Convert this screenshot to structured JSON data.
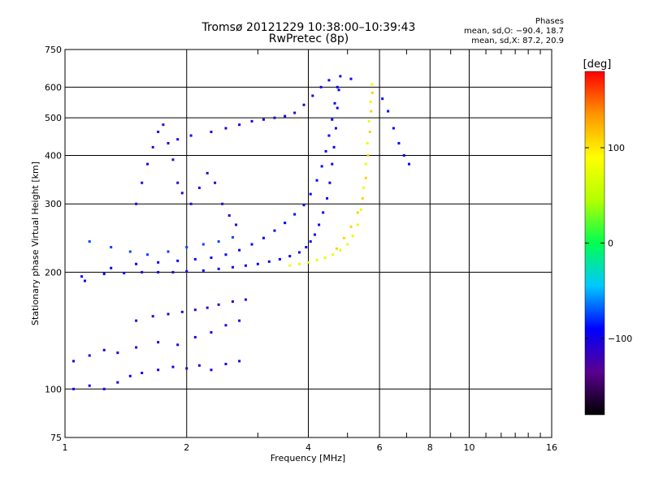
{
  "header": {
    "title_line1": "Tromsø 20121229 10:38:00–10:39:43",
    "title_line2": "RwPretec (8p)",
    "phases_heading": "Phases",
    "phases_o": "mean, sd,O: −90.4, 18.7",
    "phases_x": "mean, sd,X: 87.2, 20.9"
  },
  "chart_data": {
    "type": "scatter",
    "title": "Tromsø 20121229 10:38:00–10:39:43",
    "subtitle": "RwPretec (8p)",
    "xlabel": "Frequency [MHz]",
    "ylabel": "Stationary phase Virtual Height [km]",
    "x_scale": "log",
    "y_scale": "log",
    "xlim": [
      1,
      16
    ],
    "ylim": [
      75,
      750
    ],
    "x_ticks": [
      1,
      2,
      4,
      6,
      8,
      10,
      16
    ],
    "x_tick_labels": [
      "1",
      "2",
      "4",
      "6",
      "8",
      "10",
      "16"
    ],
    "x_minor_ticks": [
      3,
      5,
      7,
      9,
      11,
      12,
      13,
      14,
      15
    ],
    "y_ticks": [
      75,
      100,
      200,
      300,
      400,
      500,
      600,
      750
    ],
    "y_tick_labels": [
      "75",
      "100",
      "200",
      "300",
      "400",
      "500",
      "600",
      "750"
    ],
    "grid": true,
    "colorbar": {
      "label": "[deg]",
      "range": [
        -180,
        180
      ],
      "ticks": [
        100,
        0,
        -100
      ],
      "tick_labels": [
        "100",
        "0",
        "−100"
      ],
      "colormap": [
        "#000000",
        "#5a0090",
        "#0000ff",
        "#00c8ff",
        "#00ff50",
        "#b4ff00",
        "#ffff00",
        "#ff9600",
        "#ff0000"
      ]
    },
    "series": [
      {
        "name": "",
        "traces": [
          {
            "color_deg": -95,
            "points": [
              [
                1.12,
                190
              ],
              [
                1.25,
                198
              ],
              [
                1.4,
                199
              ],
              [
                1.55,
                200
              ],
              [
                1.7,
                200
              ],
              [
                1.85,
                200
              ],
              [
                2.0,
                201
              ],
              [
                2.2,
                202
              ],
              [
                2.4,
                204
              ],
              [
                2.6,
                206
              ],
              [
                2.8,
                208
              ],
              [
                3.0,
                210
              ],
              [
                3.2,
                213
              ],
              [
                3.4,
                216
              ],
              [
                3.6,
                220
              ],
              [
                3.8,
                225
              ],
              [
                3.95,
                232
              ],
              [
                4.05,
                240
              ],
              [
                4.15,
                250
              ],
              [
                4.25,
                265
              ],
              [
                4.35,
                285
              ],
              [
                4.45,
                310
              ],
              [
                4.52,
                340
              ],
              [
                4.58,
                380
              ],
              [
                4.63,
                420
              ],
              [
                4.68,
                470
              ],
              [
                4.72,
                530
              ],
              [
                4.76,
                590
              ]
            ]
          },
          {
            "color_deg": -90,
            "points": [
              [
                1.1,
                195
              ],
              [
                1.3,
                205
              ],
              [
                1.5,
                210
              ],
              [
                1.7,
                212
              ],
              [
                1.9,
                214
              ],
              [
                2.1,
                216
              ],
              [
                2.3,
                218
              ],
              [
                2.5,
                222
              ],
              [
                2.7,
                228
              ],
              [
                2.9,
                236
              ],
              [
                3.1,
                245
              ],
              [
                3.3,
                256
              ],
              [
                3.5,
                268
              ],
              [
                3.7,
                282
              ],
              [
                3.9,
                298
              ],
              [
                4.05,
                318
              ],
              [
                4.2,
                345
              ],
              [
                4.32,
                375
              ],
              [
                4.42,
                410
              ],
              [
                4.5,
                450
              ],
              [
                4.58,
                495
              ],
              [
                4.65,
                545
              ],
              [
                4.72,
                600
              ]
            ]
          },
          {
            "color_deg": -75,
            "points": [
              [
                1.15,
                240
              ],
              [
                1.3,
                232
              ],
              [
                1.45,
                226
              ],
              [
                1.6,
                222
              ],
              [
                1.8,
                226
              ],
              [
                2.0,
                232
              ],
              [
                2.2,
                236
              ],
              [
                2.4,
                240
              ],
              [
                2.6,
                246
              ]
            ]
          },
          {
            "color_deg": -110,
            "points": [
              [
                1.5,
                300
              ],
              [
                1.55,
                340
              ],
              [
                1.6,
                380
              ],
              [
                1.65,
                420
              ],
              [
                1.7,
                460
              ],
              [
                1.75,
                480
              ],
              [
                1.8,
                430
              ],
              [
                1.85,
                390
              ],
              [
                1.9,
                340
              ],
              [
                1.95,
                320
              ],
              [
                2.05,
                300
              ],
              [
                2.15,
                330
              ],
              [
                2.25,
                360
              ],
              [
                2.35,
                340
              ],
              [
                2.45,
                300
              ],
              [
                2.55,
                280
              ],
              [
                2.65,
                265
              ]
            ]
          },
          {
            "color_deg": -100,
            "points": [
              [
                1.9,
                440
              ],
              [
                2.05,
                450
              ],
              [
                2.3,
                460
              ],
              [
                2.5,
                470
              ],
              [
                2.7,
                480
              ],
              [
                2.9,
                490
              ],
              [
                3.1,
                495
              ],
              [
                3.3,
                500
              ],
              [
                3.5,
                505
              ],
              [
                3.7,
                515
              ],
              [
                3.9,
                540
              ],
              [
                4.1,
                570
              ],
              [
                4.3,
                600
              ],
              [
                4.5,
                625
              ],
              [
                4.8,
                640
              ],
              [
                5.1,
                630
              ]
            ]
          },
          {
            "color_deg": 75,
            "points": [
              [
                3.6,
                208
              ],
              [
                3.8,
                210
              ],
              [
                4.0,
                212
              ],
              [
                4.2,
                215
              ],
              [
                4.4,
                218
              ],
              [
                4.6,
                222
              ],
              [
                4.8,
                228
              ],
              [
                5.0,
                236
              ],
              [
                5.15,
                248
              ],
              [
                5.3,
                265
              ],
              [
                5.4,
                290
              ],
              [
                5.48,
                330
              ],
              [
                5.55,
                380
              ],
              [
                5.6,
                430
              ],
              [
                5.65,
                490
              ],
              [
                5.7,
                550
              ],
              [
                5.75,
                610
              ]
            ]
          },
          {
            "color_deg": 110,
            "points": [
              [
                4.7,
                230
              ],
              [
                4.9,
                245
              ],
              [
                5.1,
                262
              ],
              [
                5.3,
                285
              ],
              [
                5.45,
                310
              ],
              [
                5.55,
                350
              ],
              [
                5.62,
                400
              ],
              [
                5.68,
                460
              ],
              [
                5.72,
                520
              ],
              [
                5.76,
                580
              ]
            ]
          },
          {
            "color_deg": -100,
            "points": [
              [
                1.05,
                100
              ],
              [
                1.15,
                102
              ],
              [
                1.25,
                100
              ],
              [
                1.35,
                104
              ],
              [
                1.45,
                108
              ],
              [
                1.55,
                110
              ],
              [
                1.7,
                112
              ],
              [
                1.85,
                114
              ],
              [
                2.0,
                113
              ],
              [
                2.15,
                115
              ],
              [
                2.3,
                112
              ],
              [
                2.5,
                116
              ],
              [
                2.7,
                118
              ]
            ]
          },
          {
            "color_deg": -105,
            "points": [
              [
                1.05,
                118
              ],
              [
                1.15,
                122
              ],
              [
                1.25,
                126
              ],
              [
                1.35,
                124
              ],
              [
                1.5,
                128
              ],
              [
                1.7,
                132
              ],
              [
                1.9,
                130
              ],
              [
                2.1,
                136
              ],
              [
                2.3,
                140
              ],
              [
                2.5,
                146
              ],
              [
                2.7,
                150
              ]
            ]
          },
          {
            "color_deg": -110,
            "points": [
              [
                1.5,
                150
              ],
              [
                1.65,
                154
              ],
              [
                1.8,
                156
              ],
              [
                1.95,
                158
              ],
              [
                2.1,
                160
              ],
              [
                2.25,
                162
              ],
              [
                2.4,
                165
              ],
              [
                2.6,
                168
              ],
              [
                2.8,
                170
              ]
            ]
          },
          {
            "color_deg": -90,
            "points": [
              [
                6.1,
                560
              ],
              [
                6.3,
                520
              ],
              [
                6.5,
                470
              ],
              [
                6.7,
                430
              ],
              [
                6.9,
                400
              ],
              [
                7.1,
                380
              ]
            ]
          }
        ]
      }
    ]
  }
}
